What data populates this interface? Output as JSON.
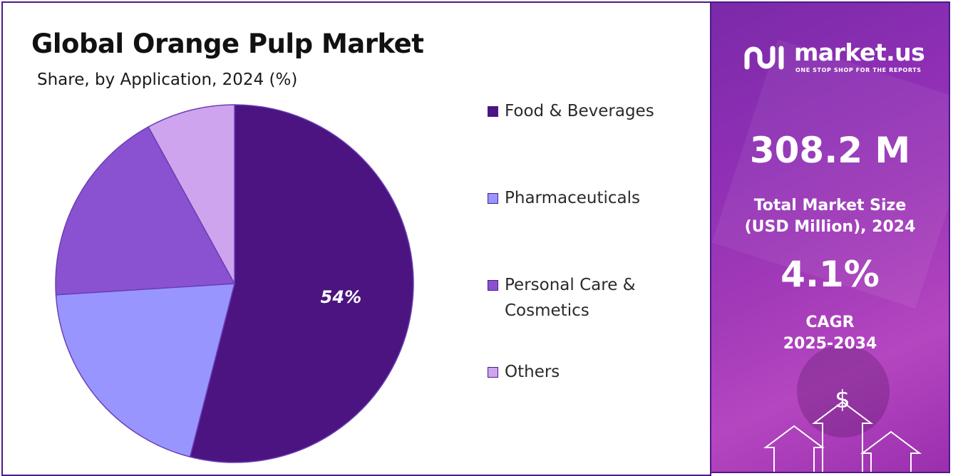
{
  "chart_data": {
    "type": "pie",
    "title": "Global Orange Pulp Market",
    "subtitle": "Share, by Application, 2024 (%)",
    "categories": [
      "Food & Beverages",
      "Pharmaceuticals",
      "Personal Care & Cosmetics",
      "Others"
    ],
    "values": [
      54,
      20,
      18,
      8
    ],
    "data_labels": [
      "54%",
      "",
      "",
      ""
    ],
    "colors": [
      "#4b1480",
      "#9995ff",
      "#8a52d0",
      "#cfa4ee"
    ],
    "legend_position": "right"
  },
  "legend": {
    "items": [
      {
        "label": "Food & Beverages",
        "color": "#4b1480"
      },
      {
        "label": "Pharmaceuticals",
        "color": "#9995ff"
      },
      {
        "label": "Personal Care & Cosmetics",
        "color": "#8a52d0"
      },
      {
        "label": "Others",
        "color": "#cfa4ee"
      }
    ]
  },
  "sidebar": {
    "brand_name": "market.us",
    "brand_tagline": "ONE STOP SHOP FOR THE REPORTS",
    "market_size_value": "308.2 M",
    "market_size_label_line1": "Total Market Size",
    "market_size_label_line2": "(USD Million), 2024",
    "cagr_value": "4.1%",
    "cagr_label_line1": "CAGR",
    "cagr_label_line2": "2025-2034",
    "currency_symbol": "$",
    "icons": [
      "brand-logo-icon",
      "growth-arrows-icon"
    ]
  }
}
